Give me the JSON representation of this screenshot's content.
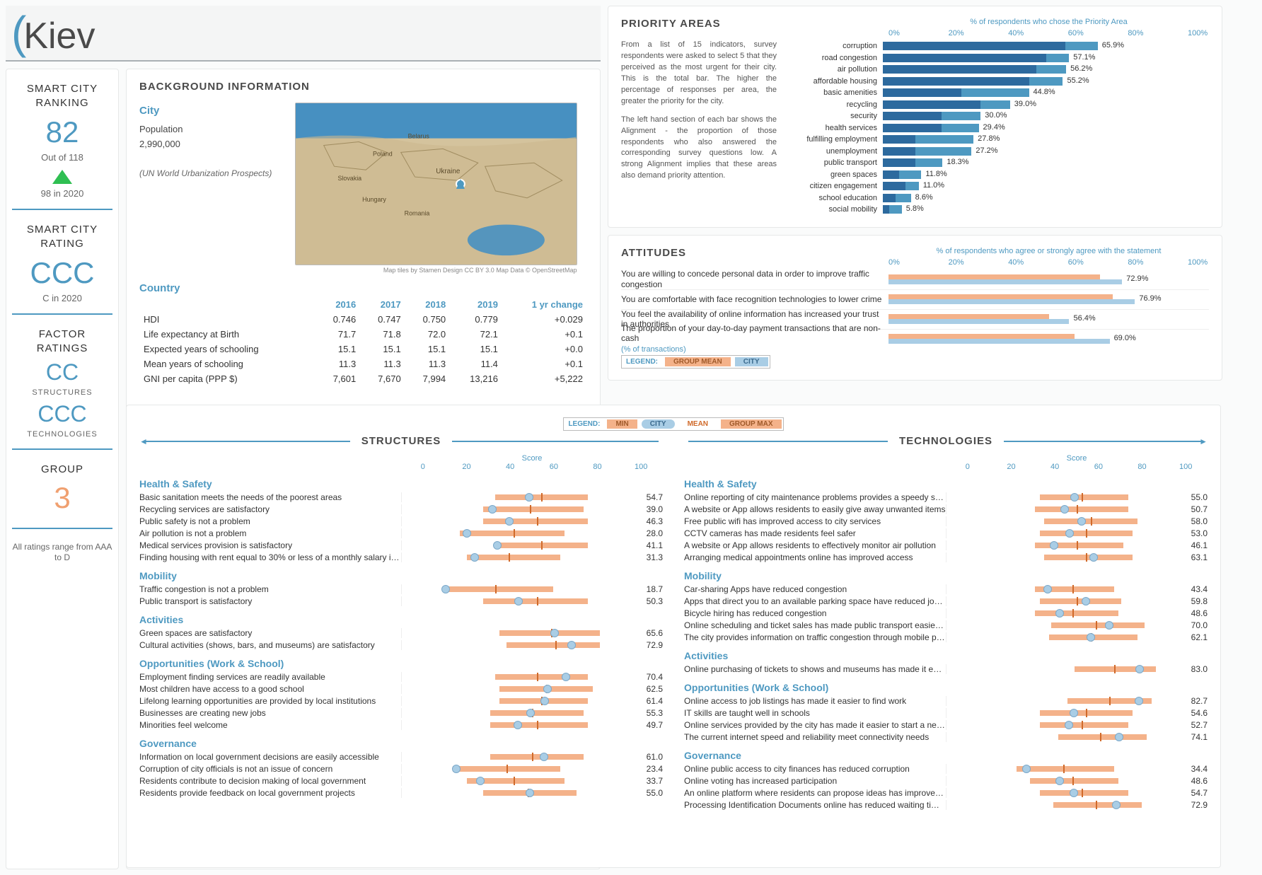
{
  "title": {
    "city_name": "Kiev"
  },
  "sidebar": {
    "ranking_label": "SMART CITY RANKING",
    "ranking_value": "82",
    "ranking_sub": "Out of 118",
    "ranking_prev": "98 in 2020",
    "rating_label": "SMART CITY RATING",
    "rating_value": "CCC",
    "rating_prev": "C in 2020",
    "factor_label": "FACTOR RATINGS",
    "structures_rating": "CC",
    "structures_label": "STRUCTURES",
    "tech_rating": "CCC",
    "tech_label": "TECHNOLOGIES",
    "group_label": "GROUP",
    "group_value": "3",
    "footer": "All ratings range from AAA to D"
  },
  "background": {
    "heading": "BACKGROUND INFORMATION",
    "city_h": "City",
    "pop_label": "Population",
    "pop_value": "2,990,000",
    "pop_source": "(UN World Urbanization Prospects)",
    "map_credit": "Map tiles by Stamen Design CC BY 3.0 Map Data © OpenStreetMap",
    "country_h": "Country",
    "cols": [
      "2016",
      "2017",
      "2018",
      "2019",
      "1 yr change"
    ],
    "rows": [
      {
        "name": "HDI",
        "v": [
          "0.746",
          "0.747",
          "0.750",
          "0.779",
          "+0.029"
        ]
      },
      {
        "name": "Life expectancy at Birth",
        "v": [
          "71.7",
          "71.8",
          "72.0",
          "72.1",
          "+0.1"
        ]
      },
      {
        "name": "Expected years of schooling",
        "v": [
          "15.1",
          "15.1",
          "15.1",
          "15.1",
          "+0.0"
        ]
      },
      {
        "name": "Mean years of schooling",
        "v": [
          "11.3",
          "11.3",
          "11.3",
          "11.4",
          "+0.1"
        ]
      },
      {
        "name": "GNI per capita (PPP $)",
        "v": [
          "7,601",
          "7,670",
          "7,994",
          "13,216",
          "+5,222"
        ]
      }
    ]
  },
  "priority": {
    "heading": "PRIORITY AREAS",
    "axis_title": "% of respondents who chose the Priority Area",
    "ticks": [
      "0%",
      "20%",
      "40%",
      "60%",
      "80%",
      "100%"
    ],
    "desc1": "From a list of 15 indicators, survey respondents were asked to select 5 that they perceived as the most urgent for their city. This is the total bar. The higher the percentage of responses per area, the greater the priority for the city.",
    "desc2": "The left hand section of each bar shows the Alignment - the proportion of those respondents who also answered the corresponding survey questions low. A strong Alignment implies that these areas also demand priority attention.",
    "colors": {
      "total": "#4e99c1",
      "align": "#2d6a9e"
    },
    "items": [
      {
        "label": "corruption",
        "total": 65.9,
        "align": 56
      },
      {
        "label": "road congestion",
        "total": 57.1,
        "align": 50
      },
      {
        "label": "air pollution",
        "total": 56.2,
        "align": 47
      },
      {
        "label": "affordable housing",
        "total": 55.2,
        "align": 45
      },
      {
        "label": "basic amenities",
        "total": 44.8,
        "align": 24
      },
      {
        "label": "recycling",
        "total": 39.0,
        "align": 30
      },
      {
        "label": "security",
        "total": 30.0,
        "align": 18
      },
      {
        "label": "health services",
        "total": 29.4,
        "align": 18
      },
      {
        "label": "fulfilling employment",
        "total": 27.8,
        "align": 10
      },
      {
        "label": "unemployment",
        "total": 27.2,
        "align": 10
      },
      {
        "label": "public transport",
        "total": 18.3,
        "align": 10
      },
      {
        "label": "green spaces",
        "total": 11.8,
        "align": 5
      },
      {
        "label": "citizen engagement",
        "total": 11.0,
        "align": 7
      },
      {
        "label": "school education",
        "total": 8.6,
        "align": 4
      },
      {
        "label": "social mobility",
        "total": 5.8,
        "align": 2
      }
    ]
  },
  "attitudes": {
    "heading": "ATTITUDES",
    "axis_title": "% of respondents who agree or strongly agree with the statement",
    "ticks": [
      "0%",
      "20%",
      "40%",
      "60%",
      "80%",
      "100%"
    ],
    "legend_label": "LEGEND:",
    "legend_group": "GROUP MEAN",
    "legend_city": "CITY",
    "colors": {
      "group": "#f4b28a",
      "city": "#a9cde5"
    },
    "items": [
      {
        "q": "You are willing to concede personal data in order to improve traffic congestion",
        "city": 72.9,
        "group": 66
      },
      {
        "q": "You are comfortable with face recognition technologies to lower crime",
        "city": 76.9,
        "group": 70
      },
      {
        "q": "You feel the availability of online information has increased your trust in authorities",
        "city": 56.4,
        "group": 50
      },
      {
        "q": "The proportion of your day-to-day payment transactions that are non-cash",
        "sub": "(% of transactions)",
        "city": 69.0,
        "group": 58
      }
    ]
  },
  "scores": {
    "legend_label": "LEGEND:",
    "legend_min": "MIN",
    "legend_city": "CITY",
    "legend_mean": "MEAN",
    "legend_max": "GROUP MAX",
    "colors": {
      "range": "#f4b28a",
      "mean": "#d06a2a",
      "city_fill": "#a9cde5",
      "city_border": "#7ba8c9"
    },
    "score_label": "Score",
    "ticks": [
      "0",
      "20",
      "40",
      "60",
      "80",
      "100"
    ],
    "structures_h": "STRUCTURES",
    "technologies_h": "TECHNOLOGIES",
    "structures": [
      {
        "cat": "Health & Safety",
        "rows": [
          {
            "q": "Basic sanitation meets the needs of the poorest areas",
            "city": 54.7,
            "min": 40,
            "max": 80,
            "mean": 60
          },
          {
            "q": "Recycling services are satisfactory",
            "city": 39.0,
            "min": 35,
            "max": 78,
            "mean": 55
          },
          {
            "q": "Public safety is not a problem",
            "city": 46.3,
            "min": 35,
            "max": 80,
            "mean": 58
          },
          {
            "q": "Air pollution is not a problem",
            "city": 28.0,
            "min": 25,
            "max": 70,
            "mean": 48
          },
          {
            "q": "Medical services provision is satisfactory",
            "city": 41.1,
            "min": 40,
            "max": 80,
            "mean": 60
          },
          {
            "q": "Finding housing with rent equal to 30% or less of a monthly salary is not a problem",
            "city": 31.3,
            "min": 28,
            "max": 68,
            "mean": 46
          }
        ]
      },
      {
        "cat": "Mobility",
        "rows": [
          {
            "q": "Traffic congestion is not a problem",
            "city": 18.7,
            "min": 18,
            "max": 65,
            "mean": 40
          },
          {
            "q": "Public transport is satisfactory",
            "city": 50.3,
            "min": 35,
            "max": 80,
            "mean": 58
          }
        ]
      },
      {
        "cat": "Activities",
        "rows": [
          {
            "q": "Green spaces are satisfactory",
            "city": 65.6,
            "min": 42,
            "max": 85,
            "mean": 64
          },
          {
            "q": "Cultural activities (shows, bars, and museums) are satisfactory",
            "city": 72.9,
            "min": 45,
            "max": 85,
            "mean": 66
          }
        ]
      },
      {
        "cat": "Opportunities (Work & School)",
        "rows": [
          {
            "q": "Employment finding services are readily available",
            "city": 70.4,
            "min": 40,
            "max": 80,
            "mean": 58
          },
          {
            "q": "Most children have access to a good school",
            "city": 62.5,
            "min": 42,
            "max": 82,
            "mean": 62
          },
          {
            "q": "Lifelong learning opportunities are provided by local institutions",
            "city": 61.4,
            "min": 42,
            "max": 80,
            "mean": 60
          },
          {
            "q": "Businesses are creating new jobs",
            "city": 55.3,
            "min": 38,
            "max": 78,
            "mean": 56
          },
          {
            "q": "Minorities feel welcome",
            "city": 49.7,
            "min": 38,
            "max": 80,
            "mean": 58
          }
        ]
      },
      {
        "cat": "Governance",
        "rows": [
          {
            "q": "Information on local government decisions are easily accessible",
            "city": 61.0,
            "min": 38,
            "max": 78,
            "mean": 56
          },
          {
            "q": "Corruption of city officials is not an issue of concern",
            "city": 23.4,
            "min": 22,
            "max": 68,
            "mean": 45
          },
          {
            "q": "Residents contribute to decision making of local government",
            "city": 33.7,
            "min": 28,
            "max": 70,
            "mean": 48
          },
          {
            "q": "Residents provide feedback on local government projects",
            "city": 55.0,
            "min": 35,
            "max": 75,
            "mean": 54
          }
        ]
      }
    ],
    "technologies": [
      {
        "cat": "Health & Safety",
        "rows": [
          {
            "q": "Online reporting of city maintenance problems provides a speedy solution",
            "city": 55.0,
            "min": 40,
            "max": 78,
            "mean": 58
          },
          {
            "q": "A website or App allows residents to easily give away unwanted items",
            "city": 50.7,
            "min": 38,
            "max": 78,
            "mean": 56
          },
          {
            "q": "Free public wifi has improved access to city services",
            "city": 58.0,
            "min": 42,
            "max": 82,
            "mean": 62
          },
          {
            "q": "CCTV cameras has made residents feel safer",
            "city": 53.0,
            "min": 40,
            "max": 80,
            "mean": 60
          },
          {
            "q": "A website or App allows residents to effectively monitor air pollution",
            "city": 46.1,
            "min": 38,
            "max": 76,
            "mean": 56
          },
          {
            "q": "Arranging medical appointments online has improved access",
            "city": 63.1,
            "min": 42,
            "max": 80,
            "mean": 60
          }
        ]
      },
      {
        "cat": "Mobility",
        "rows": [
          {
            "q": "Car-sharing Apps have reduced congestion",
            "city": 43.4,
            "min": 38,
            "max": 72,
            "mean": 54
          },
          {
            "q": "Apps that direct you to an available parking space have reduced journey time",
            "city": 59.8,
            "min": 40,
            "max": 75,
            "mean": 56
          },
          {
            "q": "Bicycle hiring has reduced congestion",
            "city": 48.6,
            "min": 38,
            "max": 74,
            "mean": 54
          },
          {
            "q": "Online scheduling and ticket sales has made public transport easier to use",
            "city": 70.0,
            "min": 45,
            "max": 85,
            "mean": 64
          },
          {
            "q": "The city provides information on traffic congestion through mobile phones",
            "city": 62.1,
            "min": 44,
            "max": 82,
            "mean": 62
          }
        ]
      },
      {
        "cat": "Activities",
        "rows": [
          {
            "q": "Online purchasing of tickets to shows and museums has made it easier to attend",
            "city": 83.0,
            "min": 55,
            "max": 90,
            "mean": 72
          }
        ]
      },
      {
        "cat": "Opportunities (Work & School)",
        "rows": [
          {
            "q": "Online access to job listings has made it easier to find work",
            "city": 82.7,
            "min": 52,
            "max": 88,
            "mean": 70
          },
          {
            "q": "IT skills are taught well in schools",
            "city": 54.6,
            "min": 40,
            "max": 80,
            "mean": 60
          },
          {
            "q": "Online services provided by the city has made it easier to start a new business",
            "city": 52.7,
            "min": 40,
            "max": 78,
            "mean": 58
          },
          {
            "q": "The current internet speed and reliability meet connectivity needs",
            "city": 74.1,
            "min": 48,
            "max": 86,
            "mean": 66
          }
        ]
      },
      {
        "cat": "Governance",
        "rows": [
          {
            "q": "Online public access to city finances has reduced corruption",
            "city": 34.4,
            "min": 30,
            "max": 72,
            "mean": 50
          },
          {
            "q": "Online voting has increased participation",
            "city": 48.6,
            "min": 36,
            "max": 74,
            "mean": 54
          },
          {
            "q": "An online platform where residents can propose ideas has improved city life",
            "city": 54.7,
            "min": 40,
            "max": 78,
            "mean": 58
          },
          {
            "q": "Processing Identification Documents online has reduced waiting times",
            "city": 72.9,
            "min": 46,
            "max": 84,
            "mean": 64
          }
        ]
      }
    ]
  }
}
